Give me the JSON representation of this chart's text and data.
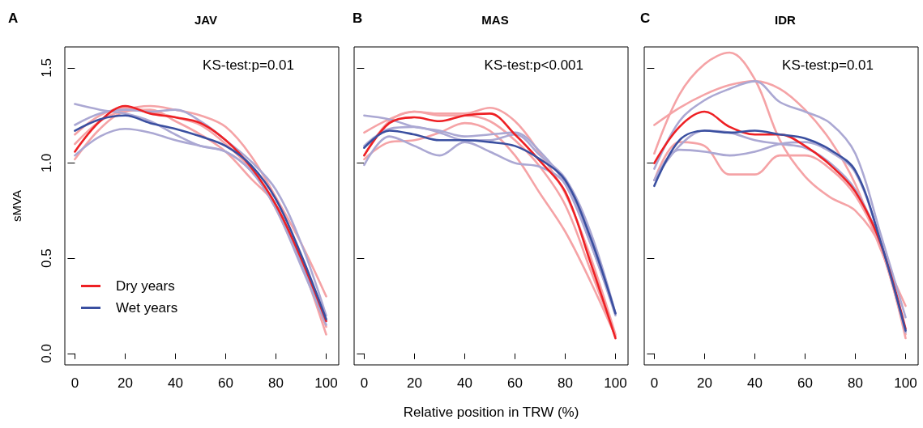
{
  "chart_data": [
    {
      "type": "line",
      "title": "JAV",
      "ylabel": "sMVA",
      "annotations": [
        "A",
        "KS-test:p=0.01"
      ],
      "marker": "none",
      "legend": "bottom left",
      "x": [
        0,
        10,
        20,
        30,
        40,
        50,
        60,
        70,
        80,
        90,
        100
      ],
      "xlim": [
        -4,
        105
      ],
      "xticks": [
        0,
        20,
        40,
        60,
        80,
        100
      ],
      "ylim": [
        -0.06,
        1.61
      ],
      "yticks": [
        {
          "value": 0,
          "label": "0.0"
        },
        {
          "value": 0.5,
          "label": "0.5"
        },
        {
          "value": 1,
          "label": "1.0"
        },
        {
          "value": 1.5,
          "label": "1.5"
        }
      ],
      "series": [
        {
          "color": "#f5a3a6",
          "values": [
            1.1,
            1.22,
            1.28,
            1.3,
            1.28,
            1.25,
            1.19,
            1.04,
            0.82,
            0.58,
            0.3
          ]
        },
        {
          "color": "#f5a3a6",
          "values": [
            1.02,
            1.18,
            1.27,
            1.28,
            1.22,
            1.15,
            1.06,
            0.92,
            0.78,
            0.48,
            0.1
          ]
        },
        {
          "color": "#f5a3a6",
          "values": [
            1.15,
            1.25,
            1.29,
            1.27,
            1.24,
            1.2,
            1.1,
            0.97,
            0.76,
            0.47,
            0.14
          ]
        },
        {
          "color": "#aba8d3",
          "values": [
            1.31,
            1.28,
            1.26,
            1.22,
            1.15,
            1.09,
            1.06,
            0.96,
            0.76,
            0.46,
            0.15
          ]
        },
        {
          "color": "#aba8d3",
          "values": [
            1.2,
            1.26,
            1.28,
            1.27,
            1.28,
            1.22,
            1.12,
            1.01,
            0.86,
            0.58,
            0.2
          ]
        },
        {
          "color": "#aba8d3",
          "values": [
            1.04,
            1.14,
            1.18,
            1.16,
            1.12,
            1.09,
            1.06,
            0.96,
            0.78,
            0.48,
            0.17
          ]
        },
        {
          "name": "Dry years",
          "color": "#ee2024",
          "values": [
            1.06,
            1.22,
            1.3,
            1.26,
            1.24,
            1.21,
            1.12,
            0.98,
            0.78,
            0.5,
            0.17
          ]
        },
        {
          "name": "Wet years",
          "color": "#3a4fa0",
          "values": [
            1.17,
            1.23,
            1.25,
            1.21,
            1.18,
            1.14,
            1.09,
            0.99,
            0.81,
            0.52,
            0.18
          ]
        }
      ]
    },
    {
      "type": "line",
      "title": "MAS",
      "xlabel": "Relative position in TRW (%)",
      "annotations": [
        "B",
        "KS-test:p<0.001"
      ],
      "marker": "none",
      "tick_labels": "x",
      "x": [
        0,
        10,
        20,
        30,
        40,
        50,
        60,
        70,
        80,
        90,
        100
      ],
      "xlim": [
        -4,
        105
      ],
      "xticks": [
        0,
        20,
        40,
        60,
        80,
        100
      ],
      "ylim": [
        -0.06,
        1.61
      ],
      "yticks": [
        {
          "value": 0,
          "label": null
        },
        {
          "value": 0.5,
          "label": null
        },
        {
          "value": 1,
          "label": null
        },
        {
          "value": 1.5,
          "label": null
        }
      ],
      "series": [
        {
          "color": "#f5a3a6",
          "values": [
            1.16,
            1.23,
            1.27,
            1.26,
            1.26,
            1.29,
            1.22,
            1.05,
            0.84,
            0.51,
            0.1
          ]
        },
        {
          "color": "#f5a3a6",
          "values": [
            1.02,
            1.11,
            1.12,
            1.16,
            1.21,
            1.17,
            1.04,
            0.84,
            0.64,
            0.38,
            0.09
          ]
        },
        {
          "color": "#f5a3a6",
          "values": [
            1.04,
            1.22,
            1.27,
            1.25,
            1.25,
            1.22,
            1.12,
            0.98,
            0.78,
            0.44,
            0.09
          ]
        },
        {
          "color": "#aba8d3",
          "values": [
            1.25,
            1.23,
            1.19,
            1.17,
            1.14,
            1.15,
            1.16,
            1.06,
            0.89,
            0.58,
            0.21
          ]
        },
        {
          "color": "#aba8d3",
          "values": [
            1.09,
            1.18,
            1.19,
            1.16,
            1.12,
            1.12,
            1.15,
            1.04,
            0.92,
            0.64,
            0.21
          ]
        },
        {
          "color": "#aba8d3",
          "values": [
            0.99,
            1.14,
            1.09,
            1.04,
            1.11,
            1.06,
            1.0,
            0.98,
            0.89,
            0.58,
            0.2
          ]
        },
        {
          "color": "#ee2024",
          "values": [
            1.04,
            1.21,
            1.24,
            1.22,
            1.25,
            1.26,
            1.15,
            1.01,
            0.85,
            0.48,
            0.08
          ]
        },
        {
          "color": "#3a4fa0",
          "values": [
            1.08,
            1.17,
            1.15,
            1.12,
            1.12,
            1.11,
            1.09,
            1.02,
            0.91,
            0.61,
            0.21
          ]
        }
      ]
    },
    {
      "type": "line",
      "title": "IDR",
      "annotations": [
        "C",
        "KS-test:p=0.01"
      ],
      "marker": "none",
      "tick_labels": "x",
      "x": [
        0,
        10,
        20,
        30,
        40,
        50,
        60,
        70,
        80,
        90,
        100
      ],
      "xlim": [
        -4,
        105
      ],
      "xticks": [
        0,
        20,
        40,
        60,
        80,
        100
      ],
      "ylim": [
        -0.06,
        1.61
      ],
      "yticks": [
        {
          "value": 0,
          "label": null
        },
        {
          "value": 0.5,
          "label": null
        },
        {
          "value": 1,
          "label": null
        },
        {
          "value": 1.5,
          "label": null
        }
      ],
      "series": [
        {
          "color": "#f5a3a6",
          "values": [
            1.05,
            1.36,
            1.52,
            1.58,
            1.44,
            1.12,
            0.93,
            0.82,
            0.75,
            0.56,
            0.08
          ]
        },
        {
          "color": "#f5a3a6",
          "values": [
            1.2,
            1.29,
            1.36,
            1.41,
            1.43,
            1.39,
            1.28,
            1.12,
            0.89,
            0.55,
            0.25
          ]
        },
        {
          "color": "#f5a3a6",
          "values": [
            0.91,
            1.11,
            1.09,
            0.94,
            0.94,
            1.04,
            1.04,
            0.97,
            0.83,
            0.56,
            0.1
          ]
        },
        {
          "color": "#aba8d3",
          "values": [
            0.97,
            1.22,
            1.33,
            1.39,
            1.43,
            1.32,
            1.27,
            1.21,
            1.05,
            0.63,
            0.19
          ]
        },
        {
          "color": "#aba8d3",
          "values": [
            0.91,
            1.09,
            1.17,
            1.16,
            1.12,
            1.1,
            1.08,
            1.0,
            0.86,
            0.58,
            0.11
          ]
        },
        {
          "color": "#aba8d3",
          "values": [
            0.91,
            1.07,
            1.06,
            1.04,
            1.06,
            1.1,
            1.11,
            1.06,
            0.95,
            0.59,
            0.12
          ]
        },
        {
          "color": "#ee2024",
          "values": [
            1.0,
            1.19,
            1.27,
            1.19,
            1.15,
            1.15,
            1.09,
            0.99,
            0.85,
            0.58,
            0.13
          ]
        },
        {
          "color": "#3a4fa0",
          "values": [
            0.88,
            1.12,
            1.17,
            1.16,
            1.17,
            1.15,
            1.13,
            1.07,
            0.96,
            0.59,
            0.12
          ]
        }
      ]
    }
  ]
}
